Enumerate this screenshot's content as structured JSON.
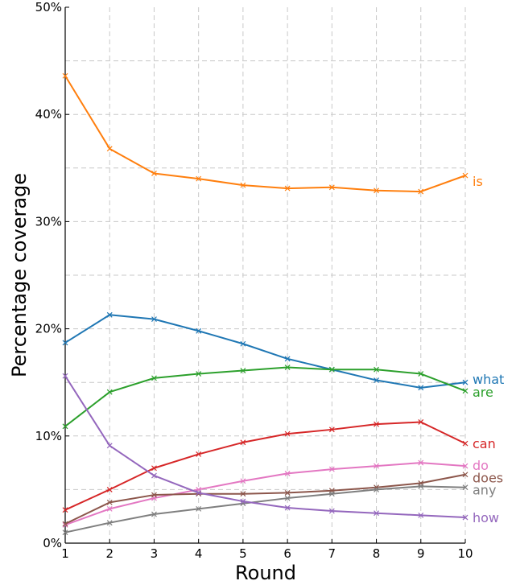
{
  "chart_data": {
    "type": "line",
    "xlabel": "Round",
    "ylabel": "Percentage coverage",
    "x": [
      1,
      2,
      3,
      4,
      5,
      6,
      7,
      8,
      9,
      10
    ],
    "xlim": [
      1,
      10
    ],
    "ylim": [
      0,
      50
    ],
    "y_ticks": [
      "0%",
      "10%",
      "20%",
      "30%",
      "40%",
      "50%"
    ],
    "x_ticks": [
      "1",
      "2",
      "3",
      "4",
      "5",
      "6",
      "7",
      "8",
      "9",
      "10"
    ],
    "grid": true,
    "legend": "inline-right",
    "series": [
      {
        "name": "is",
        "color": "#ff7f0e",
        "values": [
          43.6,
          36.8,
          34.5,
          34.0,
          33.4,
          33.1,
          33.2,
          32.9,
          32.8,
          34.3
        ]
      },
      {
        "name": "what",
        "color": "#1f77b4",
        "values": [
          18.7,
          21.3,
          20.9,
          19.8,
          18.6,
          17.2,
          16.2,
          15.2,
          14.5,
          15.0
        ]
      },
      {
        "name": "are",
        "color": "#2ca02c",
        "values": [
          10.9,
          14.1,
          15.4,
          15.8,
          16.1,
          16.4,
          16.2,
          16.2,
          15.8,
          14.2
        ]
      },
      {
        "name": "can",
        "color": "#d62728",
        "values": [
          3.1,
          5.0,
          7.0,
          8.3,
          9.4,
          10.2,
          10.6,
          11.1,
          11.3,
          9.3
        ]
      },
      {
        "name": "do",
        "color": "#e377c2",
        "values": [
          1.7,
          3.2,
          4.2,
          5.0,
          5.8,
          6.5,
          6.9,
          7.2,
          7.5,
          7.2
        ]
      },
      {
        "name": "does",
        "color": "#8c564b",
        "values": [
          1.8,
          3.8,
          4.5,
          4.6,
          4.6,
          4.7,
          4.9,
          5.2,
          5.6,
          6.4
        ]
      },
      {
        "name": "any",
        "color": "#7f7f7f",
        "values": [
          1.0,
          1.9,
          2.7,
          3.2,
          3.7,
          4.2,
          4.6,
          5.0,
          5.3,
          5.2
        ]
      },
      {
        "name": "how",
        "color": "#9467bd",
        "values": [
          15.6,
          9.1,
          6.3,
          4.7,
          3.9,
          3.3,
          3.0,
          2.8,
          2.6,
          2.4
        ]
      }
    ]
  }
}
